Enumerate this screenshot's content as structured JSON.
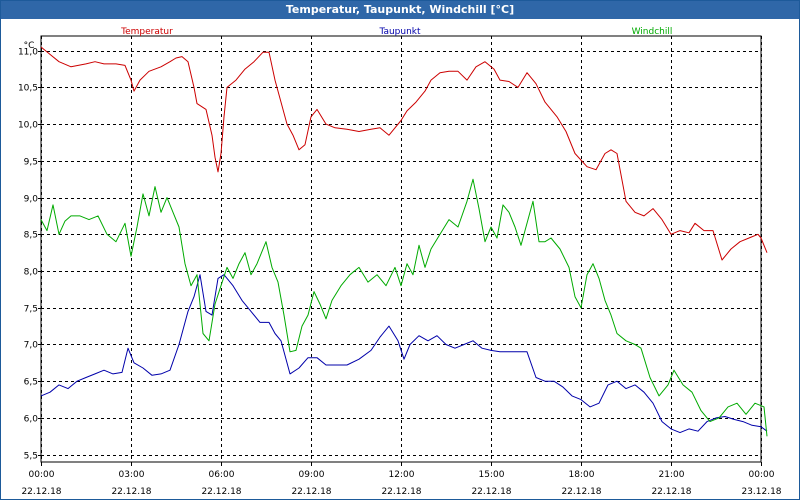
{
  "window": {
    "title": "Temperatur, Taupunkt, Windchill [°C]"
  },
  "chart_data": {
    "type": "line",
    "title": "Temperatur, Taupunkt, Windchill [°C]",
    "ylabel": "°C",
    "xlabel": "",
    "ylim": [
      5.5,
      11.0
    ],
    "xlim": [
      0,
      24
    ],
    "grid": true,
    "yticks": [
      5.5,
      6.0,
      6.5,
      7.0,
      7.5,
      8.0,
      8.5,
      9.0,
      9.5,
      10.0,
      10.5,
      11.0
    ],
    "ytick_labels": [
      "5,5",
      "6,0",
      "6,5",
      "7,0",
      "7,5",
      "8,0",
      "8,5",
      "9,0",
      "9,5",
      "10,0",
      "10,5",
      "11,0"
    ],
    "xticks": [
      {
        "h": 0,
        "time": "00:00",
        "date": "22.12.18"
      },
      {
        "h": 3,
        "time": "03:00",
        "date": "22.12.18"
      },
      {
        "h": 6,
        "time": "06:00",
        "date": "22.12.18"
      },
      {
        "h": 9,
        "time": "09:00",
        "date": "22.12.18"
      },
      {
        "h": 12,
        "time": "12:00",
        "date": "22.12.18"
      },
      {
        "h": 15,
        "time": "15:00",
        "date": "22.12.18"
      },
      {
        "h": 18,
        "time": "18:00",
        "date": "22.12.18"
      },
      {
        "h": 21,
        "time": "21:00",
        "date": "22.12.18"
      },
      {
        "h": 24,
        "time": "00:00",
        "date": "23.12.18"
      }
    ],
    "series": [
      {
        "name": "Temperatur",
        "color": "#cc0000",
        "legend_pos": "left",
        "points": [
          [
            0,
            11.05
          ],
          [
            0.3,
            10.95
          ],
          [
            0.6,
            10.85
          ],
          [
            1.0,
            10.78
          ],
          [
            1.5,
            10.82
          ],
          [
            1.8,
            10.85
          ],
          [
            2.1,
            10.82
          ],
          [
            2.5,
            10.82
          ],
          [
            2.8,
            10.8
          ],
          [
            3.0,
            10.6
          ],
          [
            3.1,
            10.45
          ],
          [
            3.3,
            10.6
          ],
          [
            3.6,
            10.72
          ],
          [
            4.0,
            10.78
          ],
          [
            4.3,
            10.85
          ],
          [
            4.5,
            10.9
          ],
          [
            4.7,
            10.92
          ],
          [
            4.9,
            10.85
          ],
          [
            5.1,
            10.5
          ],
          [
            5.2,
            10.28
          ],
          [
            5.5,
            10.2
          ],
          [
            5.7,
            9.85
          ],
          [
            5.8,
            9.55
          ],
          [
            5.9,
            9.35
          ],
          [
            6.0,
            9.6
          ],
          [
            6.1,
            10.1
          ],
          [
            6.2,
            10.5
          ],
          [
            6.5,
            10.6
          ],
          [
            6.8,
            10.75
          ],
          [
            7.1,
            10.85
          ],
          [
            7.4,
            10.98
          ],
          [
            7.6,
            10.98
          ],
          [
            7.8,
            10.6
          ],
          [
            8.0,
            10.3
          ],
          [
            8.2,
            10.0
          ],
          [
            8.4,
            9.85
          ],
          [
            8.6,
            9.65
          ],
          [
            8.8,
            9.72
          ],
          [
            9.0,
            10.1
          ],
          [
            9.2,
            10.2
          ],
          [
            9.5,
            10.0
          ],
          [
            9.8,
            9.95
          ],
          [
            10.2,
            9.93
          ],
          [
            10.6,
            9.9
          ],
          [
            11.0,
            9.93
          ],
          [
            11.3,
            9.95
          ],
          [
            11.6,
            9.85
          ],
          [
            12.0,
            10.05
          ],
          [
            12.2,
            10.18
          ],
          [
            12.5,
            10.3
          ],
          [
            12.8,
            10.45
          ],
          [
            13.0,
            10.6
          ],
          [
            13.3,
            10.7
          ],
          [
            13.6,
            10.72
          ],
          [
            13.9,
            10.72
          ],
          [
            14.2,
            10.6
          ],
          [
            14.5,
            10.78
          ],
          [
            14.8,
            10.85
          ],
          [
            15.1,
            10.75
          ],
          [
            15.3,
            10.6
          ],
          [
            15.6,
            10.58
          ],
          [
            15.9,
            10.5
          ],
          [
            16.2,
            10.7
          ],
          [
            16.5,
            10.55
          ],
          [
            16.8,
            10.3
          ],
          [
            17.2,
            10.1
          ],
          [
            17.5,
            9.9
          ],
          [
            17.8,
            9.6
          ],
          [
            18.2,
            9.42
          ],
          [
            18.5,
            9.38
          ],
          [
            18.8,
            9.6
          ],
          [
            19.0,
            9.65
          ],
          [
            19.2,
            9.6
          ],
          [
            19.5,
            8.95
          ],
          [
            19.8,
            8.8
          ],
          [
            20.1,
            8.75
          ],
          [
            20.4,
            8.85
          ],
          [
            20.7,
            8.7
          ],
          [
            21.0,
            8.5
          ],
          [
            21.3,
            8.55
          ],
          [
            21.6,
            8.52
          ],
          [
            21.8,
            8.65
          ],
          [
            22.1,
            8.55
          ],
          [
            22.4,
            8.55
          ],
          [
            22.7,
            8.15
          ],
          [
            23.0,
            8.3
          ],
          [
            23.3,
            8.4
          ],
          [
            23.6,
            8.45
          ],
          [
            23.9,
            8.5
          ],
          [
            24.0,
            8.45
          ],
          [
            24.2,
            8.25
          ]
        ]
      },
      {
        "name": "Taupunkt",
        "color": "#0000aa",
        "legend_pos": "center",
        "points": [
          [
            0,
            6.3
          ],
          [
            0.3,
            6.35
          ],
          [
            0.6,
            6.45
          ],
          [
            0.9,
            6.4
          ],
          [
            1.2,
            6.5
          ],
          [
            1.5,
            6.55
          ],
          [
            1.8,
            6.6
          ],
          [
            2.1,
            6.65
          ],
          [
            2.4,
            6.6
          ],
          [
            2.7,
            6.62
          ],
          [
            2.9,
            6.95
          ],
          [
            3.1,
            6.75
          ],
          [
            3.4,
            6.68
          ],
          [
            3.7,
            6.58
          ],
          [
            4.0,
            6.6
          ],
          [
            4.3,
            6.65
          ],
          [
            4.6,
            7.0
          ],
          [
            4.9,
            7.45
          ],
          [
            5.1,
            7.65
          ],
          [
            5.3,
            7.95
          ],
          [
            5.5,
            7.45
          ],
          [
            5.7,
            7.4
          ],
          [
            5.9,
            7.9
          ],
          [
            6.1,
            7.95
          ],
          [
            6.4,
            7.8
          ],
          [
            6.7,
            7.6
          ],
          [
            7.0,
            7.45
          ],
          [
            7.3,
            7.3
          ],
          [
            7.6,
            7.3
          ],
          [
            7.8,
            7.15
          ],
          [
            8.0,
            7.05
          ],
          [
            8.3,
            6.6
          ],
          [
            8.6,
            6.68
          ],
          [
            8.9,
            6.82
          ],
          [
            9.2,
            6.82
          ],
          [
            9.5,
            6.72
          ],
          [
            9.8,
            6.72
          ],
          [
            10.2,
            6.72
          ],
          [
            10.6,
            6.8
          ],
          [
            11.0,
            6.92
          ],
          [
            11.3,
            7.1
          ],
          [
            11.6,
            7.25
          ],
          [
            11.9,
            7.05
          ],
          [
            12.1,
            6.8
          ],
          [
            12.3,
            7.0
          ],
          [
            12.6,
            7.12
          ],
          [
            12.9,
            7.05
          ],
          [
            13.2,
            7.12
          ],
          [
            13.5,
            7.0
          ],
          [
            13.8,
            6.95
          ],
          [
            14.1,
            7.0
          ],
          [
            14.4,
            7.05
          ],
          [
            14.7,
            6.95
          ],
          [
            15.0,
            6.92
          ],
          [
            15.3,
            6.9
          ],
          [
            15.6,
            6.9
          ],
          [
            15.9,
            6.9
          ],
          [
            16.2,
            6.9
          ],
          [
            16.5,
            6.55
          ],
          [
            16.8,
            6.5
          ],
          [
            17.1,
            6.5
          ],
          [
            17.4,
            6.42
          ],
          [
            17.7,
            6.3
          ],
          [
            18.0,
            6.25
          ],
          [
            18.3,
            6.15
          ],
          [
            18.6,
            6.2
          ],
          [
            18.9,
            6.45
          ],
          [
            19.2,
            6.5
          ],
          [
            19.5,
            6.4
          ],
          [
            19.8,
            6.45
          ],
          [
            20.1,
            6.35
          ],
          [
            20.4,
            6.2
          ],
          [
            20.7,
            5.95
          ],
          [
            21.0,
            5.85
          ],
          [
            21.3,
            5.8
          ],
          [
            21.6,
            5.85
          ],
          [
            21.9,
            5.82
          ],
          [
            22.2,
            5.95
          ],
          [
            22.5,
            6.0
          ],
          [
            22.8,
            6.02
          ],
          [
            23.1,
            5.98
          ],
          [
            23.4,
            5.95
          ],
          [
            23.7,
            5.9
          ],
          [
            24.0,
            5.88
          ],
          [
            24.2,
            5.82
          ]
        ]
      },
      {
        "name": "Windchill",
        "color": "#00aa00",
        "legend_pos": "right",
        "points": [
          [
            0,
            8.7
          ],
          [
            0.2,
            8.55
          ],
          [
            0.4,
            8.9
          ],
          [
            0.6,
            8.5
          ],
          [
            0.8,
            8.68
          ],
          [
            1.0,
            8.75
          ],
          [
            1.3,
            8.75
          ],
          [
            1.6,
            8.7
          ],
          [
            1.9,
            8.75
          ],
          [
            2.2,
            8.5
          ],
          [
            2.5,
            8.4
          ],
          [
            2.8,
            8.65
          ],
          [
            3.0,
            8.2
          ],
          [
            3.2,
            8.6
          ],
          [
            3.4,
            9.05
          ],
          [
            3.6,
            8.75
          ],
          [
            3.8,
            9.15
          ],
          [
            4.0,
            8.8
          ],
          [
            4.2,
            9.0
          ],
          [
            4.4,
            8.8
          ],
          [
            4.6,
            8.6
          ],
          [
            4.8,
            8.1
          ],
          [
            5.0,
            7.8
          ],
          [
            5.2,
            7.95
          ],
          [
            5.4,
            7.15
          ],
          [
            5.6,
            7.05
          ],
          [
            5.8,
            7.55
          ],
          [
            6.0,
            7.8
          ],
          [
            6.2,
            8.05
          ],
          [
            6.4,
            7.9
          ],
          [
            6.6,
            8.1
          ],
          [
            6.8,
            8.25
          ],
          [
            7.0,
            7.95
          ],
          [
            7.2,
            8.1
          ],
          [
            7.5,
            8.4
          ],
          [
            7.7,
            8.05
          ],
          [
            7.9,
            7.85
          ],
          [
            8.1,
            7.4
          ],
          [
            8.3,
            6.9
          ],
          [
            8.5,
            6.92
          ],
          [
            8.7,
            7.25
          ],
          [
            8.9,
            7.4
          ],
          [
            9.1,
            7.72
          ],
          [
            9.3,
            7.55
          ],
          [
            9.5,
            7.35
          ],
          [
            9.7,
            7.6
          ],
          [
            10.0,
            7.8
          ],
          [
            10.3,
            7.95
          ],
          [
            10.6,
            8.05
          ],
          [
            10.9,
            7.85
          ],
          [
            11.2,
            7.95
          ],
          [
            11.5,
            7.8
          ],
          [
            11.8,
            8.05
          ],
          [
            12.0,
            7.8
          ],
          [
            12.2,
            8.1
          ],
          [
            12.4,
            7.95
          ],
          [
            12.6,
            8.35
          ],
          [
            12.8,
            8.05
          ],
          [
            13.0,
            8.3
          ],
          [
            13.3,
            8.5
          ],
          [
            13.6,
            8.7
          ],
          [
            13.9,
            8.6
          ],
          [
            14.2,
            8.95
          ],
          [
            14.4,
            9.25
          ],
          [
            14.6,
            8.85
          ],
          [
            14.8,
            8.4
          ],
          [
            15.0,
            8.6
          ],
          [
            15.2,
            8.45
          ],
          [
            15.4,
            8.9
          ],
          [
            15.6,
            8.8
          ],
          [
            15.8,
            8.6
          ],
          [
            16.0,
            8.35
          ],
          [
            16.2,
            8.65
          ],
          [
            16.4,
            8.95
          ],
          [
            16.6,
            8.4
          ],
          [
            16.8,
            8.4
          ],
          [
            17.0,
            8.45
          ],
          [
            17.3,
            8.3
          ],
          [
            17.6,
            8.05
          ],
          [
            17.8,
            7.65
          ],
          [
            18.0,
            7.5
          ],
          [
            18.2,
            7.95
          ],
          [
            18.4,
            8.1
          ],
          [
            18.6,
            7.9
          ],
          [
            18.8,
            7.6
          ],
          [
            19.0,
            7.4
          ],
          [
            19.2,
            7.15
          ],
          [
            19.5,
            7.05
          ],
          [
            19.8,
            7.0
          ],
          [
            20.0,
            6.95
          ],
          [
            20.3,
            6.55
          ],
          [
            20.6,
            6.3
          ],
          [
            20.9,
            6.45
          ],
          [
            21.1,
            6.65
          ],
          [
            21.4,
            6.45
          ],
          [
            21.7,
            6.35
          ],
          [
            22.0,
            6.1
          ],
          [
            22.3,
            5.95
          ],
          [
            22.6,
            6.0
          ],
          [
            22.9,
            6.15
          ],
          [
            23.2,
            6.2
          ],
          [
            23.5,
            6.05
          ],
          [
            23.8,
            6.2
          ],
          [
            24.1,
            6.15
          ],
          [
            24.2,
            5.75
          ]
        ]
      }
    ]
  }
}
